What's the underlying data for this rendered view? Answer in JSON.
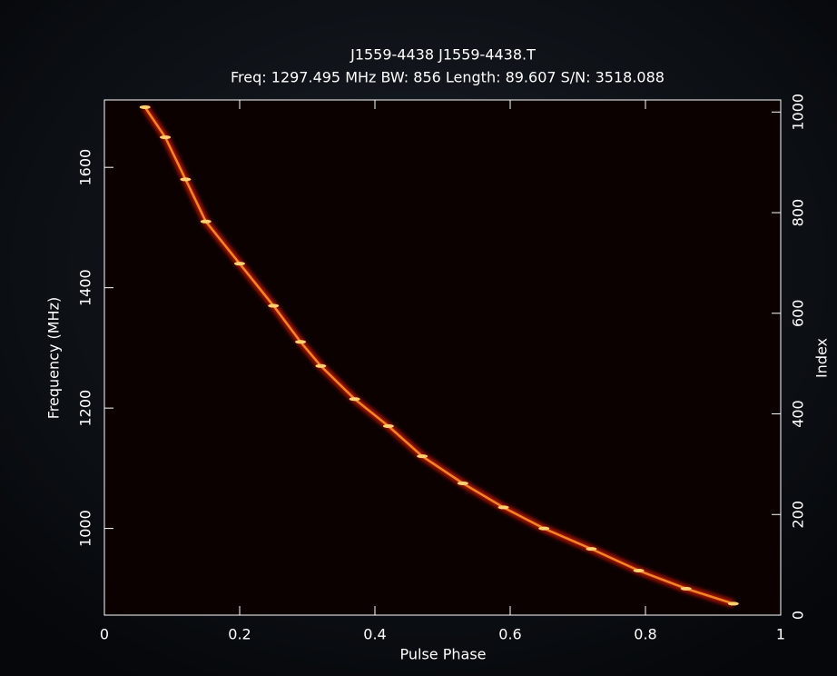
{
  "chart_data": {
    "type": "scatter",
    "title": "J1559-4438 J1559-4438.T",
    "subtitle": "Freq: 1297.495 MHz BW: 856 Length: 89.607 S/N: 3518.088",
    "x_label": "Pulse Phase",
    "y_label": "Frequency (MHz)",
    "y2_label": "Index",
    "x": [
      0.06,
      0.09,
      0.12,
      0.15,
      0.2,
      0.25,
      0.29,
      0.32,
      0.37,
      0.42,
      0.47,
      0.53,
      0.59,
      0.65,
      0.72,
      0.79,
      0.86,
      0.93
    ],
    "y": [
      1700,
      1650,
      1580,
      1510,
      1440,
      1370,
      1310,
      1270,
      1215,
      1170,
      1120,
      1075,
      1035,
      1000,
      966,
      930,
      900,
      875
    ],
    "color": "#ff9a30",
    "xlim": [
      0,
      1
    ],
    "xticks": [
      0,
      0.2,
      0.4,
      0.6,
      0.8,
      1
    ],
    "ylim": [
      856,
      1712
    ],
    "yticks": [
      1000,
      1200,
      1400,
      1600
    ],
    "y2lim": [
      0,
      1024
    ],
    "y2ticks": [
      0,
      200,
      400,
      600,
      800,
      1000
    ]
  }
}
